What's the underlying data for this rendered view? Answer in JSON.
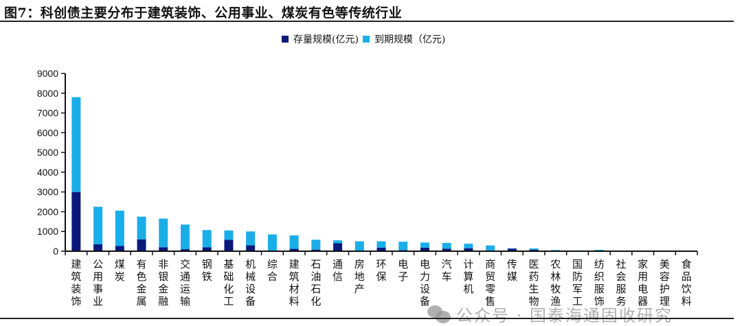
{
  "title": "图7：科创债主要分布于建筑装饰、公用事业、煤炭有色等传统行业",
  "watermark": "公众号 · 国泰海通固收研究",
  "chart_data": {
    "type": "bar",
    "stacked": true,
    "title": "",
    "xlabel": "",
    "ylabel": "",
    "ylim": [
      0,
      9000
    ],
    "yticks": [
      0,
      1000,
      2000,
      3000,
      4000,
      5000,
      6000,
      7000,
      8000,
      9000
    ],
    "grid": false,
    "legend_position": "top-right",
    "categories": [
      "建筑装饰",
      "公用事业",
      "煤炭",
      "有色金属",
      "非银金融",
      "交通运输",
      "钢铁",
      "基础化工",
      "机械设备",
      "综合",
      "建筑材料",
      "石油石化",
      "通信",
      "房地产",
      "环保",
      "电子",
      "电力设备",
      "汽车",
      "计算机",
      "商贸零售",
      "传媒",
      "医药生物",
      "农林牧渔",
      "国防军工",
      "纺织服饰",
      "社会服务",
      "家用电器",
      "美容护理",
      "食品饮料"
    ],
    "series": [
      {
        "name": "存量规模(亿元)",
        "color": "#0a1a7a",
        "values": [
          3000,
          350,
          270,
          600,
          200,
          100,
          200,
          580,
          300,
          20,
          120,
          80,
          400,
          10,
          180,
          50,
          180,
          130,
          150,
          30,
          130,
          70,
          20,
          10,
          10,
          10,
          0,
          0,
          0
        ]
      },
      {
        "name": "到期规模（亿元)",
        "color": "#1aaee8",
        "values": [
          4800,
          1900,
          1780,
          1150,
          1450,
          1250,
          870,
          470,
          700,
          830,
          680,
          500,
          150,
          490,
          320,
          430,
          260,
          290,
          230,
          260,
          20,
          70,
          40,
          30,
          60,
          10,
          5,
          0,
          0
        ]
      }
    ]
  }
}
